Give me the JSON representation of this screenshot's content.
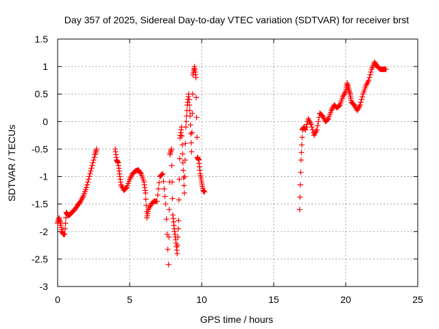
{
  "chart_data": {
    "type": "scatter",
    "title": "Day 357 of 2025, Sidereal Day-to-day VTEC variation (SDTVAR) for receiver brst",
    "xlabel": "GPS time / hours",
    "ylabel": "SDTVAR / TECUs",
    "xlim": [
      0,
      25
    ],
    "ylim": [
      -3,
      1.5
    ],
    "xticks": [
      "0",
      "5",
      "10",
      "15",
      "20",
      "25"
    ],
    "yticks": [
      "-3",
      "-2.5",
      "-2",
      "-1.5",
      "-1",
      "-0.5",
      "0",
      "0.5",
      "1",
      "1.5"
    ],
    "xtick_values": [
      0,
      5,
      10,
      15,
      20,
      25
    ],
    "ytick_values": [
      -3,
      -2.5,
      -2,
      -1.5,
      -1,
      -0.5,
      0,
      0.5,
      1,
      1.5
    ],
    "grid": true,
    "marker": "plus",
    "color": "#ff0000",
    "segments": [
      {
        "x": [
          0.0,
          0.1,
          0.2,
          0.3,
          0.4,
          0.5,
          0.6,
          0.7,
          0.8,
          0.9,
          1.0,
          1.2,
          1.4,
          1.6,
          1.8,
          2.0,
          2.2,
          2.4,
          2.6,
          2.7
        ],
        "y": [
          -1.85,
          -1.75,
          -1.85,
          -2.0,
          -2.05,
          -2.05,
          -1.65,
          -1.7,
          -1.7,
          -1.68,
          -1.65,
          -1.6,
          -1.52,
          -1.45,
          -1.35,
          -1.2,
          -1.0,
          -0.8,
          -0.6,
          -0.5
        ]
      },
      {
        "x": [
          4.0,
          4.1,
          4.2,
          4.3,
          4.4,
          4.6,
          4.8,
          5.0,
          5.2,
          5.4,
          5.6,
          5.8,
          6.0,
          6.1,
          6.2,
          6.3,
          6.5,
          6.7,
          6.9,
          7.1,
          7.3,
          7.5,
          7.7,
          7.8,
          7.9,
          8.0,
          8.1,
          8.2,
          8.3,
          8.4,
          8.5,
          8.6,
          8.7,
          8.8,
          8.9,
          9.0,
          9.1,
          9.2,
          9.3,
          9.4,
          9.5,
          9.6,
          9.7,
          9.8,
          9.9,
          10.0,
          10.1,
          10.2
        ],
        "y": [
          -0.5,
          -0.7,
          -0.75,
          -0.95,
          -1.15,
          -1.25,
          -1.2,
          -1.05,
          -0.95,
          -0.9,
          -0.88,
          -0.95,
          -1.1,
          -1.3,
          -1.75,
          -1.6,
          -1.5,
          -1.45,
          -1.45,
          -1.0,
          -0.95,
          -1.5,
          -2.6,
          -0.6,
          -0.5,
          -1.7,
          -1.95,
          -2.15,
          -2.4,
          -1.8,
          -0.3,
          -0.1,
          -0.75,
          -1.3,
          -0.1,
          0.3,
          0.5,
          0.1,
          -0.55,
          0.85,
          1.0,
          0.8,
          -0.65,
          -0.7,
          -0.95,
          -1.1,
          -1.25,
          -1.28
        ]
      },
      {
        "x": [
          16.8,
          16.9,
          17.0,
          17.1,
          17.2,
          17.4,
          17.6,
          17.8,
          18.0,
          18.2,
          18.4,
          18.6,
          18.8,
          19.0,
          19.2,
          19.4,
          19.6,
          19.8,
          20.0,
          20.1,
          20.2,
          20.3,
          20.4,
          20.6,
          20.8,
          21.0,
          21.2,
          21.4,
          21.6,
          21.8,
          22.0,
          22.2,
          22.4,
          22.6,
          22.8
        ],
        "y": [
          -1.6,
          -0.7,
          -0.15,
          -0.1,
          -0.15,
          0.05,
          -0.05,
          -0.25,
          -0.15,
          0.15,
          0.1,
          0.0,
          0.05,
          0.2,
          0.3,
          0.25,
          0.3,
          0.45,
          0.55,
          0.7,
          0.6,
          0.5,
          0.35,
          0.3,
          0.2,
          0.3,
          0.5,
          0.65,
          0.75,
          0.95,
          1.08,
          1.0,
          0.95,
          0.95,
          0.95
        ]
      }
    ]
  }
}
